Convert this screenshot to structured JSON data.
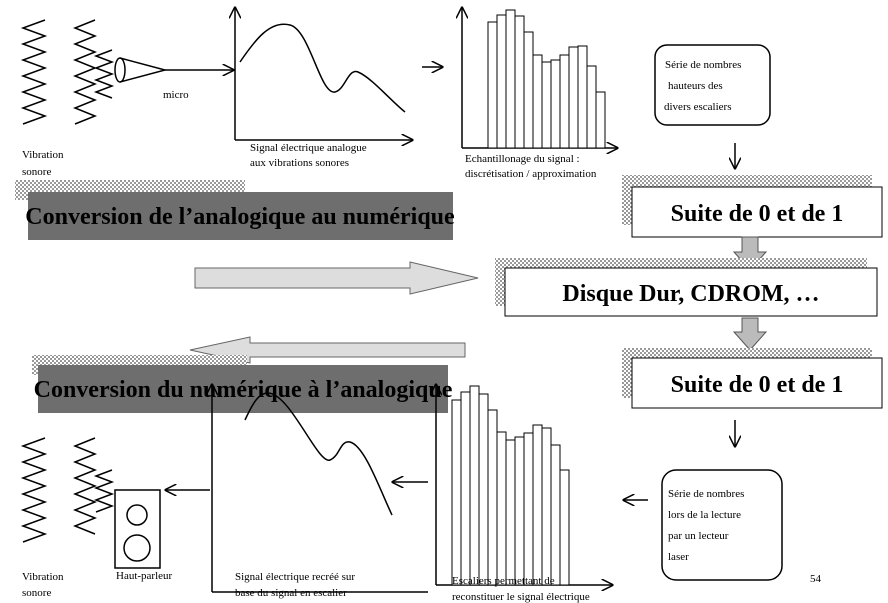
{
  "top": {
    "vibration": [
      "Vibration",
      "sonore"
    ],
    "micro": "micro",
    "signal_caption": [
      "Signal électrique analogue",
      "aux vibrations sonores"
    ],
    "sampling_caption": [
      "Echantillonage du signal :",
      "discrétisation / approximation"
    ],
    "numbers_box": [
      "Série de nombres",
      "hauteurs des",
      "divers escaliers"
    ]
  },
  "banner_adc": "Conversion de l’analogique au  numérique",
  "suite_1": "Suite de 0 et de 1",
  "storage": "Disque Dur, CDROM, …",
  "suite_2": "Suite de 0 et de 1",
  "banner_dac": "Conversion du numérique à l’analogique",
  "bottom": {
    "vibration": [
      "Vibration",
      "sonore"
    ],
    "speaker": "Haut-parleur",
    "signal_caption": [
      "Signal électrique recréé sur",
      "base du signal en escalier"
    ],
    "stairs_caption": [
      "Escaliers permettant de",
      "reconstituer le signal électrique"
    ],
    "numbers_box": [
      "Série de nombres",
      "lors de la lecture",
      "par un lecteur",
      "laser"
    ]
  },
  "page_number": "54"
}
